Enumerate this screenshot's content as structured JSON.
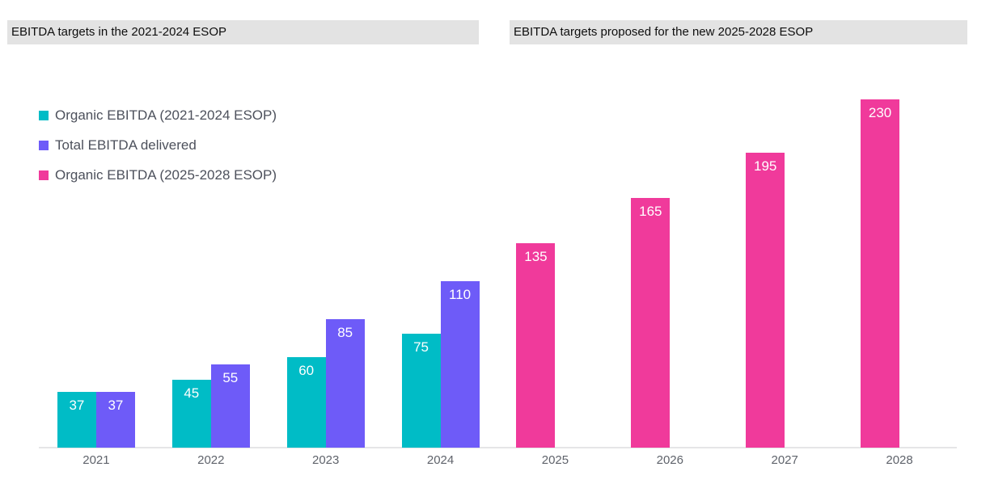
{
  "headers": {
    "left": "EBITDA targets in the 2021-2024 ESOP",
    "right": "EBITDA targets proposed for the new 2025-2028 ESOP"
  },
  "legend": [
    {
      "label": "Organic EBITDA (2021-2024 ESOP)",
      "color": "#00bcc6"
    },
    {
      "label": "Total EBITDA delivered",
      "color": "#6e5bf8"
    },
    {
      "label": "Organic EBITDA (2025-2028 ESOP)",
      "color": "#f03a9b"
    }
  ],
  "colors": {
    "teal": "#00bcc6",
    "purple": "#6e5bf8",
    "pink": "#f03a9b",
    "header_background": "#e3e3e3",
    "axis_line": "#e5e5e7",
    "axis_label_text": "#5f636b",
    "legend_text": "#4d515c",
    "bar_value_text": "#ffffff"
  },
  "chart_data": {
    "type": "bar",
    "title": "",
    "xlabel": "",
    "ylabel": "",
    "categories": [
      "2021",
      "2022",
      "2023",
      "2024",
      "2025",
      "2026",
      "2027",
      "2028"
    ],
    "series": [
      {
        "name": "Organic EBITDA (2021-2024 ESOP)",
        "color": "#00bcc6",
        "values": [
          37,
          45,
          60,
          75,
          null,
          null,
          null,
          null
        ]
      },
      {
        "name": "Total EBITDA delivered",
        "color": "#6e5bf8",
        "values": [
          37,
          55,
          85,
          110,
          null,
          null,
          null,
          null
        ]
      },
      {
        "name": "Organic EBITDA (2025-2028 ESOP)",
        "color": "#f03a9b",
        "values": [
          null,
          null,
          null,
          null,
          135,
          165,
          195,
          230
        ]
      }
    ],
    "ylim": [
      0,
      240
    ],
    "grid": false,
    "legend_position": "top-left",
    "value_labels": "inside-top"
  }
}
